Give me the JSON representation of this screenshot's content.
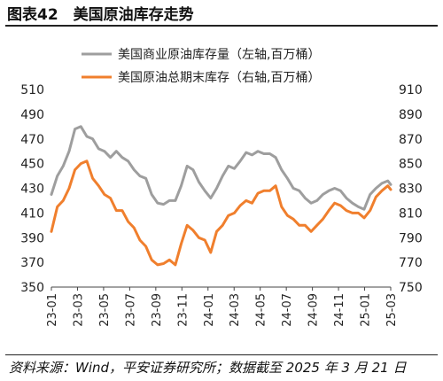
{
  "header": {
    "title": "图表42　美国原油库存走势"
  },
  "footer": {
    "source": "资料来源：Wind，平安证券研究所；数据截至 2025 年 3 月 21 日"
  },
  "chart_data": {
    "type": "line",
    "title": "图表42　美国原油库存走势",
    "legend_position": "top",
    "grid": false,
    "x_ticks": [
      "23-01",
      "23-03",
      "23-05",
      "23-07",
      "23-09",
      "23-11",
      "24-01",
      "24-03",
      "24-05",
      "24-07",
      "24-09",
      "24-11",
      "25-01",
      "25-03"
    ],
    "x_range": [
      "2023-01-06",
      "2025-03-21"
    ],
    "left_axis": {
      "ylim": [
        350,
        510
      ],
      "ticks": [
        350,
        370,
        390,
        410,
        430,
        450,
        470,
        490,
        510
      ]
    },
    "right_axis": {
      "ylim": [
        750,
        910
      ],
      "ticks": [
        750,
        770,
        790,
        810,
        830,
        850,
        870,
        890,
        910
      ]
    },
    "series": [
      {
        "name": "美国商业原油库存量（左轴,百万桶）",
        "axis": "left",
        "color": "#9e9e9e",
        "points": [
          [
            "2023-01-06",
            425
          ],
          [
            "2023-01-20",
            440
          ],
          [
            "2023-02-03",
            448
          ],
          [
            "2023-02-17",
            460
          ],
          [
            "2023-03-03",
            478
          ],
          [
            "2023-03-17",
            480
          ],
          [
            "2023-03-31",
            472
          ],
          [
            "2023-04-14",
            470
          ],
          [
            "2023-04-28",
            462
          ],
          [
            "2023-05-12",
            460
          ],
          [
            "2023-05-26",
            455
          ],
          [
            "2023-06-09",
            460
          ],
          [
            "2023-06-23",
            455
          ],
          [
            "2023-07-07",
            452
          ],
          [
            "2023-07-21",
            445
          ],
          [
            "2023-08-04",
            440
          ],
          [
            "2023-08-18",
            438
          ],
          [
            "2023-09-01",
            425
          ],
          [
            "2023-09-15",
            418
          ],
          [
            "2023-09-29",
            417
          ],
          [
            "2023-10-13",
            420
          ],
          [
            "2023-10-27",
            420
          ],
          [
            "2023-11-10",
            432
          ],
          [
            "2023-11-24",
            448
          ],
          [
            "2023-12-08",
            445
          ],
          [
            "2023-12-22",
            435
          ],
          [
            "2024-01-05",
            428
          ],
          [
            "2024-01-19",
            422
          ],
          [
            "2024-02-02",
            430
          ],
          [
            "2024-02-16",
            440
          ],
          [
            "2024-03-01",
            448
          ],
          [
            "2024-03-15",
            446
          ],
          [
            "2024-03-29",
            452
          ],
          [
            "2024-04-12",
            459
          ],
          [
            "2024-04-26",
            457
          ],
          [
            "2024-05-10",
            460
          ],
          [
            "2024-05-24",
            458
          ],
          [
            "2024-06-07",
            458
          ],
          [
            "2024-06-21",
            455
          ],
          [
            "2024-07-05",
            445
          ],
          [
            "2024-07-19",
            438
          ],
          [
            "2024-08-02",
            430
          ],
          [
            "2024-08-16",
            428
          ],
          [
            "2024-08-30",
            422
          ],
          [
            "2024-09-13",
            418
          ],
          [
            "2024-09-27",
            420
          ],
          [
            "2024-10-11",
            425
          ],
          [
            "2024-10-25",
            428
          ],
          [
            "2024-11-08",
            430
          ],
          [
            "2024-11-22",
            428
          ],
          [
            "2024-12-06",
            422
          ],
          [
            "2024-12-20",
            418
          ],
          [
            "2025-01-03",
            415
          ],
          [
            "2025-01-17",
            413
          ],
          [
            "2025-01-31",
            425
          ],
          [
            "2025-02-14",
            430
          ],
          [
            "2025-02-28",
            434
          ],
          [
            "2025-03-14",
            436
          ],
          [
            "2025-03-21",
            433
          ]
        ]
      },
      {
        "name": "美国原油总期末库存（右轴,百万桶）",
        "axis": "right",
        "color": "#f07f2d",
        "points": [
          [
            "2023-01-06",
            795
          ],
          [
            "2023-01-20",
            815
          ],
          [
            "2023-02-03",
            820
          ],
          [
            "2023-02-17",
            830
          ],
          [
            "2023-03-03",
            845
          ],
          [
            "2023-03-17",
            850
          ],
          [
            "2023-03-31",
            852
          ],
          [
            "2023-04-14",
            838
          ],
          [
            "2023-04-28",
            832
          ],
          [
            "2023-05-12",
            825
          ],
          [
            "2023-05-26",
            822
          ],
          [
            "2023-06-09",
            812
          ],
          [
            "2023-06-23",
            812
          ],
          [
            "2023-07-07",
            803
          ],
          [
            "2023-07-21",
            798
          ],
          [
            "2023-08-04",
            788
          ],
          [
            "2023-08-18",
            783
          ],
          [
            "2023-09-01",
            772
          ],
          [
            "2023-09-15",
            768
          ],
          [
            "2023-09-29",
            769
          ],
          [
            "2023-10-13",
            772
          ],
          [
            "2023-10-27",
            768
          ],
          [
            "2023-11-10",
            785
          ],
          [
            "2023-11-24",
            800
          ],
          [
            "2023-12-08",
            796
          ],
          [
            "2023-12-22",
            790
          ],
          [
            "2024-01-05",
            788
          ],
          [
            "2024-01-19",
            778
          ],
          [
            "2024-02-02",
            795
          ],
          [
            "2024-02-16",
            800
          ],
          [
            "2024-03-01",
            808
          ],
          [
            "2024-03-15",
            810
          ],
          [
            "2024-03-29",
            816
          ],
          [
            "2024-04-12",
            820
          ],
          [
            "2024-04-26",
            818
          ],
          [
            "2024-05-10",
            826
          ],
          [
            "2024-05-24",
            828
          ],
          [
            "2024-06-07",
            828
          ],
          [
            "2024-06-21",
            832
          ],
          [
            "2024-07-05",
            815
          ],
          [
            "2024-07-19",
            808
          ],
          [
            "2024-08-02",
            805
          ],
          [
            "2024-08-16",
            800
          ],
          [
            "2024-08-30",
            800
          ],
          [
            "2024-09-13",
            795
          ],
          [
            "2024-09-27",
            800
          ],
          [
            "2024-10-11",
            805
          ],
          [
            "2024-10-25",
            812
          ],
          [
            "2024-11-08",
            818
          ],
          [
            "2024-11-22",
            816
          ],
          [
            "2024-12-06",
            812
          ],
          [
            "2024-12-20",
            810
          ],
          [
            "2025-01-03",
            810
          ],
          [
            "2025-01-17",
            806
          ],
          [
            "2025-01-31",
            812
          ],
          [
            "2025-02-14",
            823
          ],
          [
            "2025-02-28",
            828
          ],
          [
            "2025-03-14",
            832
          ],
          [
            "2025-03-21",
            829
          ]
        ]
      }
    ]
  }
}
